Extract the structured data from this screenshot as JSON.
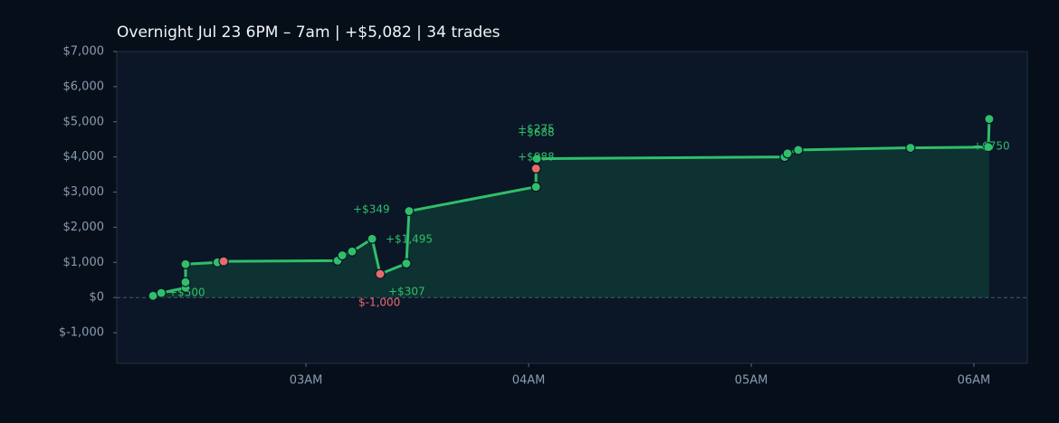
{
  "chart_data": {
    "type": "line",
    "title": "Overnight  Jul 23 6PM – 7am  |  +$5,082  |  34 trades",
    "x": [
      2.313,
      2.35,
      2.459,
      2.459,
      2.459,
      2.602,
      2.63,
      3.142,
      3.163,
      3.207,
      3.297,
      3.333,
      3.451,
      3.463,
      4.033,
      4.033,
      4.037,
      5.15,
      5.163,
      5.211,
      5.715,
      6.065,
      6.069
    ],
    "series": [
      {
        "color": "#2fbf6a",
        "values": [
          50,
          130,
          280,
          440,
          950,
          1000,
          1030,
          1050,
          1200,
          1310,
          1670,
          670,
          970,
          2460,
          3150,
          3670,
          3950,
          4000,
          4100,
          4200,
          4260,
          4280,
          5080
        ],
        "marker_colors": [
          "#2fbf6a",
          "#2fbf6a",
          "#2fbf6a",
          "#2fbf6a",
          "#2fbf6a",
          "#2fbf6a",
          "#e86b6b",
          "#2fbf6a",
          "#2fbf6a",
          "#2fbf6a",
          "#2fbf6a",
          "#e86b6b",
          "#2fbf6a",
          "#2fbf6a",
          "#2fbf6a",
          "#e86b6b",
          "#2fbf6a",
          "#2fbf6a",
          "#2fbf6a",
          "#2fbf6a",
          "#2fbf6a",
          "#2fbf6a",
          "#2fbf6a"
        ],
        "fill": "#0e3131"
      }
    ],
    "annotations": [
      {
        "text": "+$500",
        "color": "#2fbf6a"
      },
      {
        "text": "+$349",
        "color": "#2fbf6a"
      },
      {
        "text": "+$1,495",
        "color": "#2fbf6a"
      },
      {
        "text": "+$307",
        "color": "#2fbf6a"
      },
      {
        "text": "$-1,000",
        "color": "#e86b6b"
      },
      {
        "text": "+$275",
        "color": "#2fbf6a"
      },
      {
        "text": "+$688",
        "color": "#2fbf6a"
      },
      {
        "text": "+$988",
        "color": "#2fbf6a"
      },
      {
        "text": "+$750",
        "color": "#2fbf6a"
      }
    ],
    "xlim": [
      2.15,
      6.24
    ],
    "xticks": [
      {
        "value": 3,
        "label": "03AM"
      },
      {
        "value": 4,
        "label": "04AM"
      },
      {
        "value": 5,
        "label": "05AM"
      },
      {
        "value": 6,
        "label": "06AM"
      }
    ],
    "ylim": [
      -1872,
      7000
    ],
    "yticks": [
      {
        "value": -1000,
        "label": "$-1,000"
      },
      {
        "value": 0,
        "label": "$0"
      },
      {
        "value": 1000,
        "label": "$1,000"
      },
      {
        "value": 2000,
        "label": "$2,000"
      },
      {
        "value": 3000,
        "label": "$3,000"
      },
      {
        "value": 4000,
        "label": "$4,000"
      },
      {
        "value": 5000,
        "label": "$5,000"
      },
      {
        "value": 6000,
        "label": "$6,000"
      },
      {
        "value": 7000,
        "label": "$7,000"
      }
    ],
    "zero_line": true
  }
}
